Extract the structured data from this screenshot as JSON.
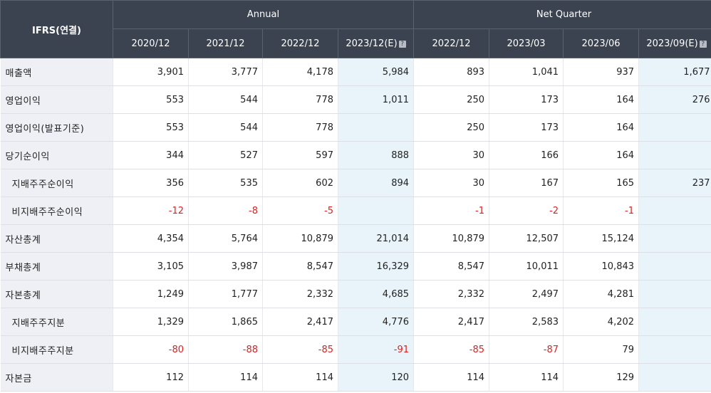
{
  "header": {
    "corner": "IFRS(연결)",
    "annual": "Annual",
    "quarter": "Net Quarter",
    "periods": [
      "2020/12",
      "2021/12",
      "2022/12",
      "2023/12(E)",
      "2022/12",
      "2023/03",
      "2023/06",
      "2023/09(E)"
    ],
    "estimate_icon": "?"
  },
  "rows": [
    {
      "label": "매출액",
      "sub": false,
      "values": [
        "3,901",
        "3,777",
        "4,178",
        "5,984",
        "893",
        "1,041",
        "937",
        "1,677"
      ]
    },
    {
      "label": "영업이익",
      "sub": false,
      "values": [
        "553",
        "544",
        "778",
        "1,011",
        "250",
        "173",
        "164",
        "276"
      ]
    },
    {
      "label": "영업이익(발표기준)",
      "sub": false,
      "values": [
        "553",
        "544",
        "778",
        "",
        "250",
        "173",
        "164",
        ""
      ]
    },
    {
      "label": "당기순이익",
      "sub": false,
      "values": [
        "344",
        "527",
        "597",
        "888",
        "30",
        "166",
        "164",
        ""
      ]
    },
    {
      "label": "지배주주순이익",
      "sub": true,
      "values": [
        "356",
        "535",
        "602",
        "894",
        "30",
        "167",
        "165",
        "237"
      ]
    },
    {
      "label": "비지배주주순이익",
      "sub": true,
      "values": [
        "-12",
        "-8",
        "-5",
        "",
        "-1",
        "-2",
        "-1",
        ""
      ]
    },
    {
      "label": "자산총계",
      "sub": false,
      "values": [
        "4,354",
        "5,764",
        "10,879",
        "21,014",
        "10,879",
        "12,507",
        "15,124",
        ""
      ]
    },
    {
      "label": "부채총계",
      "sub": false,
      "values": [
        "3,105",
        "3,987",
        "8,547",
        "16,329",
        "8,547",
        "10,011",
        "10,843",
        ""
      ]
    },
    {
      "label": "자본총계",
      "sub": false,
      "values": [
        "1,249",
        "1,777",
        "2,332",
        "4,685",
        "2,332",
        "2,497",
        "4,281",
        ""
      ]
    },
    {
      "label": "지배주주지분",
      "sub": true,
      "values": [
        "1,329",
        "1,865",
        "2,417",
        "4,776",
        "2,417",
        "2,583",
        "4,202",
        ""
      ]
    },
    {
      "label": "비지배주주지분",
      "sub": true,
      "values": [
        "-80",
        "-88",
        "-85",
        "-91",
        "-85",
        "-87",
        "79",
        ""
      ]
    },
    {
      "label": "자본금",
      "sub": false,
      "values": [
        "112",
        "114",
        "114",
        "120",
        "114",
        "114",
        "129",
        ""
      ]
    }
  ],
  "colors": {
    "header_bg": "#3b4250",
    "label_bg": "#eef0f6",
    "estimate_bg": "#e8f4fa",
    "negative": "#e02020"
  }
}
